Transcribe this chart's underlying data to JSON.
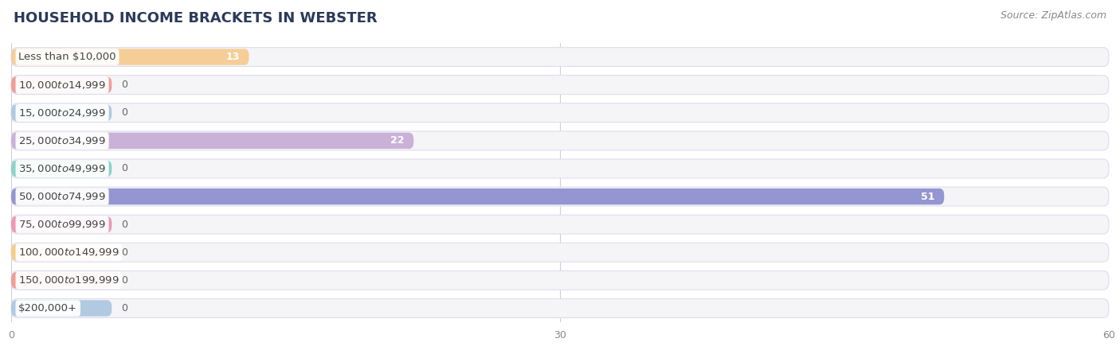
{
  "title": "HOUSEHOLD INCOME BRACKETS IN WEBSTER",
  "source": "Source: ZipAtlas.com",
  "categories": [
    "Less than $10,000",
    "$10,000 to $14,999",
    "$15,000 to $24,999",
    "$25,000 to $34,999",
    "$35,000 to $49,999",
    "$50,000 to $74,999",
    "$75,000 to $99,999",
    "$100,000 to $149,999",
    "$150,000 to $199,999",
    "$200,000+"
  ],
  "values": [
    13,
    0,
    0,
    22,
    0,
    51,
    0,
    0,
    0,
    0
  ],
  "bar_colors": [
    "#f5c98a",
    "#f0908a",
    "#a8c4e0",
    "#c4a8d4",
    "#7dcfbe",
    "#8888cc",
    "#f08aaa",
    "#f5c87a",
    "#f0908a",
    "#a8c4e0"
  ],
  "xlim": [
    0,
    60
  ],
  "xticks": [
    0,
    30,
    60
  ],
  "background_color": "#ffffff",
  "row_bg_color": "#f5f5f8",
  "row_border_color": "#ddddee",
  "title_fontsize": 13,
  "source_fontsize": 9,
  "label_fontsize": 9.5,
  "value_fontsize": 9,
  "title_color": "#2a3a5a",
  "source_color": "#888888",
  "label_color": "#444444",
  "value_color_inside": "#ffffff",
  "value_color_outside": "#666666"
}
